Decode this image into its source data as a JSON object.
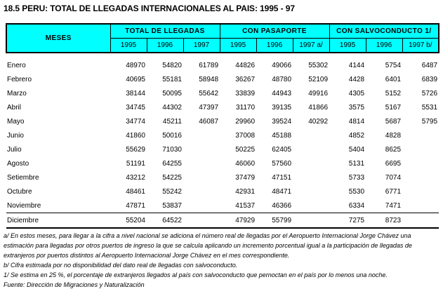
{
  "title": "18.5 PERU: TOTAL DE LLEGADAS INTERNACIONALES AL PAIS: 1995 - 97",
  "colors": {
    "header_bg": "#00ffff",
    "border": "#000000",
    "text": "#000000"
  },
  "table": {
    "meses_header": "MESES",
    "groups": [
      {
        "label": "TOTAL DE LLEGADAS",
        "years": [
          "1995",
          "1996",
          "1997"
        ]
      },
      {
        "label": "CON PASAPORTE",
        "years": [
          "1995",
          "1996",
          "1997 a/"
        ]
      },
      {
        "label": "CON SALVOCONDUCTO 1/",
        "years": [
          "1995",
          "1996",
          "1997 b/"
        ]
      }
    ],
    "rows": [
      {
        "month": "Enero",
        "values": [
          "48970",
          "54820",
          "61789",
          "44826",
          "49066",
          "55302",
          "4144",
          "5754",
          "6487"
        ]
      },
      {
        "month": "Febrero",
        "values": [
          "40695",
          "55181",
          "58948",
          "36267",
          "48780",
          "52109",
          "4428",
          "6401",
          "6839"
        ]
      },
      {
        "month": "Marzo",
        "values": [
          "38144",
          "50095",
          "55642",
          "33839",
          "44943",
          "49916",
          "4305",
          "5152",
          "5726"
        ]
      },
      {
        "month": "Abril",
        "values": [
          "34745",
          "44302",
          "47397",
          "31170",
          "39135",
          "41866",
          "3575",
          "5167",
          "5531"
        ]
      },
      {
        "month": "Mayo",
        "values": [
          "34774",
          "45211",
          "46087",
          "29960",
          "39524",
          "40292",
          "4814",
          "5687",
          "5795"
        ]
      },
      {
        "month": "Junio",
        "values": [
          "41860",
          "50016",
          "",
          "37008",
          "45188",
          "",
          "4852",
          "4828",
          ""
        ]
      },
      {
        "month": "Julio",
        "values": [
          "55629",
          "71030",
          "",
          "50225",
          "62405",
          "",
          "5404",
          "8625",
          ""
        ]
      },
      {
        "month": "Agosto",
        "values": [
          "51191",
          "64255",
          "",
          "46060",
          "57560",
          "",
          "5131",
          "6695",
          ""
        ]
      },
      {
        "month": "Setiembre",
        "values": [
          "43212",
          "54225",
          "",
          "37479",
          "47151",
          "",
          "5733",
          "7074",
          ""
        ]
      },
      {
        "month": "Octubre",
        "values": [
          "48461",
          "55242",
          "",
          "42931",
          "48471",
          "",
          "5530",
          "6771",
          ""
        ]
      },
      {
        "month": "Noviembre",
        "values": [
          "47871",
          "53837",
          "",
          "41537",
          "46366",
          "",
          "6334",
          "7471",
          ""
        ]
      },
      {
        "month": "Diciembre",
        "separator_top": true,
        "values": [
          "55204",
          "64522",
          "",
          "47929",
          "55799",
          "",
          "7275",
          "8723",
          ""
        ]
      }
    ]
  },
  "footnotes": [
    "a/ En estos meses, para llegar a la cifra a nivel nacional se adiciona el número real de llegadas por el Aeropuerto Internacional Jorge Chávez una estimación para llegadas por otros puertos de ingreso la que se calcula aplicando un incremento porcentual igual a la participación de llegadas de extranjeros por puertos distintos al Aeropuerto Internacional Jorge Chávez en el mes correspondiente.",
    "b/  Cifra estimada por no disponibilidad del dato real de llegadas con salvoconducto.",
    "1/ Se estima en 25 %, el porcentaje de extranjeros llegados al país con salvoconducto que pernoctan en el país por lo menos una noche.",
    "Fuente: Dirección de Migraciones y Naturalización"
  ]
}
